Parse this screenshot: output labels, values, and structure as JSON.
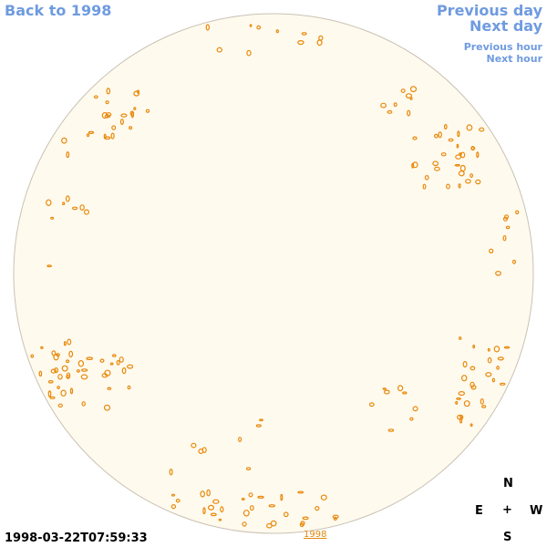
{
  "nav": {
    "back": "Back to 1998",
    "previous_day": "Previous day",
    "next_day": "Next day",
    "previous_hour": "Previous hour",
    "next_hour": "Next hour"
  },
  "timestamp": "1998-03-22T07:59:33",
  "year_link": "1998",
  "compass": {
    "north": "N",
    "south": "S",
    "east": "E",
    "west": "W",
    "center": "+"
  },
  "colors": {
    "disk_fill": "#fffaee",
    "disk_edge": "#c9c2b4",
    "contour": "#e8890c",
    "link": "#6f9be0"
  }
}
